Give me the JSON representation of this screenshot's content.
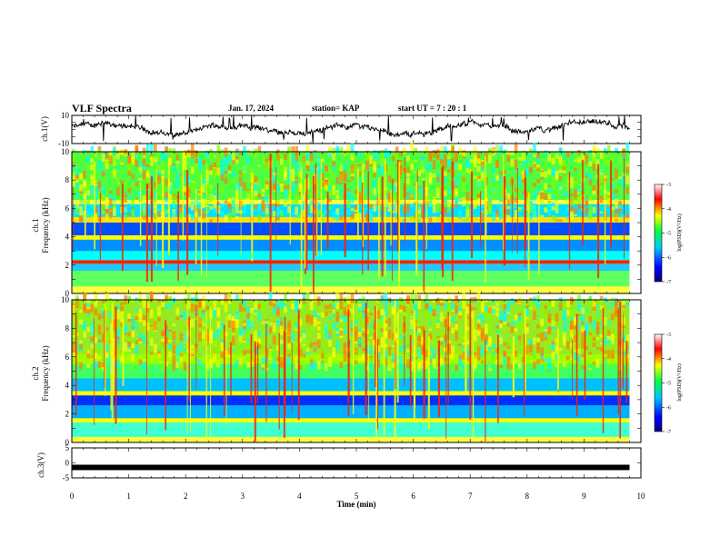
{
  "header": {
    "title": "VLF Spectra",
    "date": "Jan. 17, 2024",
    "station": "station= KAP",
    "start": "start  UT =   7 : 20 : 1"
  },
  "chart_data": [
    {
      "type": "line",
      "name": "ch1-waveform",
      "ylabel": "ch.1(V)",
      "xlim": [
        0,
        10
      ],
      "ylim": [
        -10,
        10
      ],
      "y_ticklabels": [
        "10",
        "-10"
      ],
      "data_end_min": 9.8
    },
    {
      "type": "heatmap",
      "name": "ch1-spectrogram",
      "ylabel": "ch.1\nFrequency (kHz)",
      "xlim": [
        0,
        10
      ],
      "ylim": [
        0,
        10
      ],
      "y_ticklabels": [
        "0",
        "2",
        "4",
        "6",
        "8",
        "10"
      ],
      "data_end_min": 9.8,
      "colorbar": {
        "label": "log(PSD)(V²/Hz)",
        "range": [
          -7,
          -3
        ],
        "ticklabels": [
          "-3",
          "-4",
          "-5",
          "-6",
          "-7"
        ]
      }
    },
    {
      "type": "heatmap",
      "name": "ch2-spectrogram",
      "ylabel": "ch.2\nFrequency (kHz)",
      "xlim": [
        0,
        10
      ],
      "ylim": [
        0,
        10
      ],
      "y_ticklabels": [
        "0",
        "2",
        "4",
        "6",
        "8",
        "10"
      ],
      "data_end_min": 9.8,
      "colorbar": {
        "label": "log(PSD)(V²/Hz)",
        "range": [
          -7,
          -3
        ],
        "ticklabels": [
          "-3",
          "-4",
          "-5",
          "-6",
          "-7"
        ]
      }
    },
    {
      "type": "line",
      "name": "ch3-waveform",
      "ylabel": "ch.3(V)",
      "xlim": [
        0,
        10
      ],
      "ylim": [
        -5,
        5
      ],
      "y_ticklabels": [
        "5",
        "0",
        "-5"
      ],
      "level_value": -1.5,
      "data_end_min": 9.8
    }
  ],
  "xaxis": {
    "label": "Time  (min)",
    "ticklabels": [
      "0",
      "1",
      "2",
      "3",
      "4",
      "5",
      "6",
      "7",
      "8",
      "9",
      "10"
    ]
  },
  "colors": {
    "colormap": [
      "#000080",
      "#0000ff",
      "#0080ff",
      "#00ffff",
      "#00ff00",
      "#ffff00",
      "#ff0000",
      "#ffffff"
    ],
    "trace": "#000000"
  }
}
